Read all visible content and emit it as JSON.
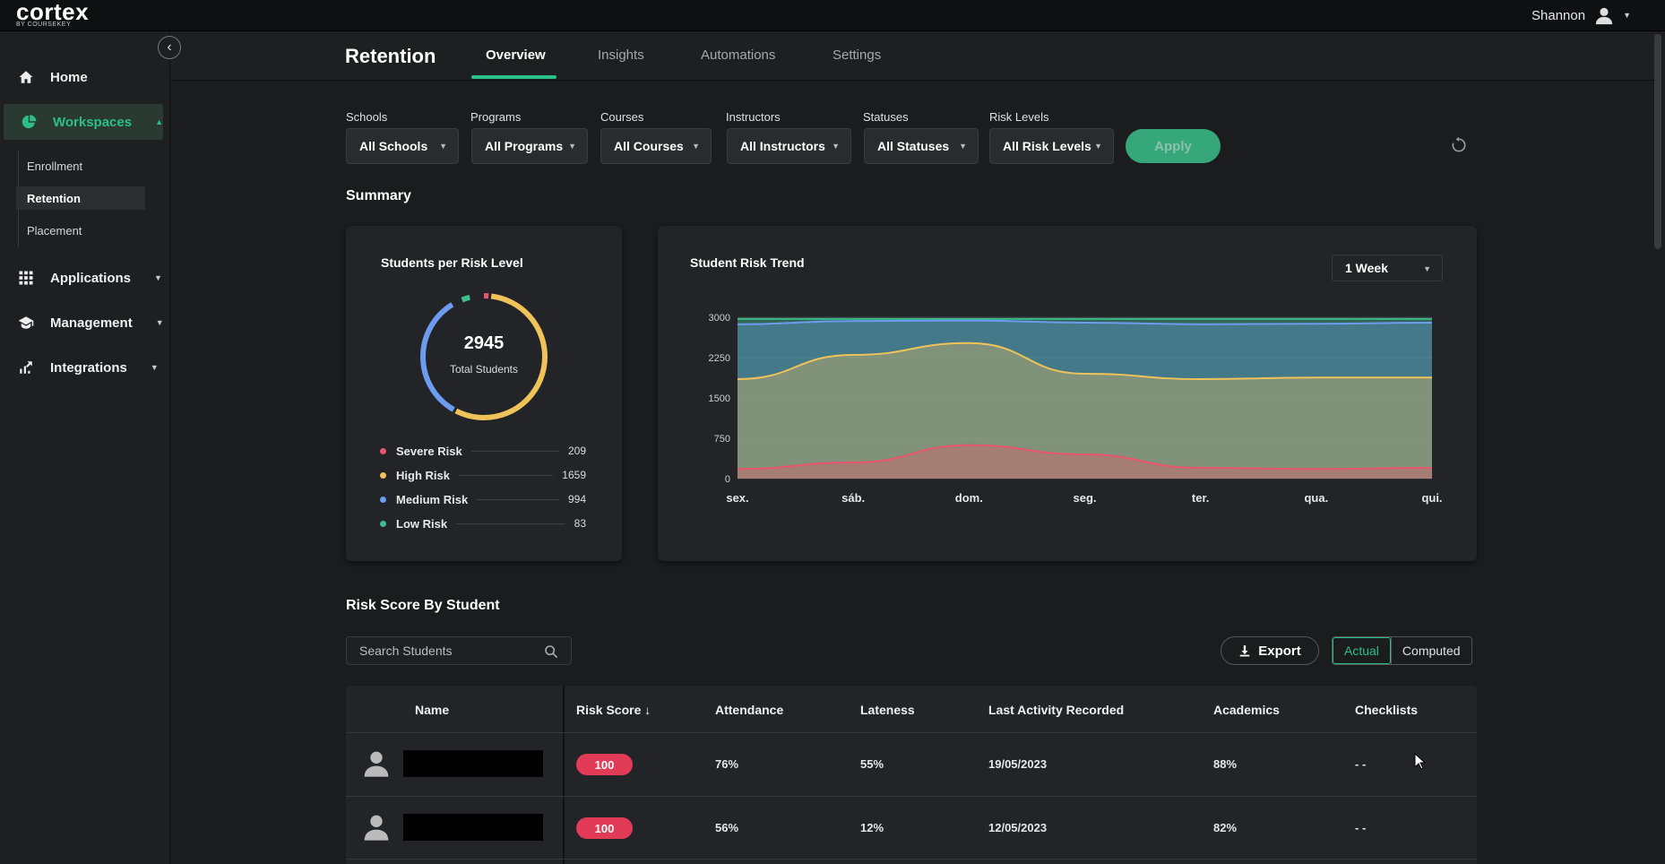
{
  "app": {
    "logo": "cortex",
    "logo_sub": "BY COURSEKEY",
    "user_name": "Shannon"
  },
  "sidebar": {
    "items": [
      {
        "label": "Home",
        "icon": "home-icon"
      },
      {
        "label": "Workspaces",
        "icon": "pie-icon",
        "expanded": true
      },
      {
        "label": "Applications",
        "icon": "grid-icon"
      },
      {
        "label": "Management",
        "icon": "graduation-cap-icon"
      },
      {
        "label": "Integrations",
        "icon": "integrations-icon"
      }
    ],
    "sub_items": [
      "Enrollment",
      "Retention",
      "Placement"
    ],
    "active_sub": "Retention"
  },
  "header": {
    "title": "Retention",
    "tabs": [
      "Overview",
      "Insights",
      "Automations",
      "Settings"
    ],
    "active_tab": "Overview"
  },
  "filters": {
    "labels": [
      "Schools",
      "Programs",
      "Courses",
      "Instructors",
      "Statuses",
      "Risk Levels"
    ],
    "values": [
      "All Schools",
      "All Programs",
      "All Courses",
      "All Instructors",
      "All Statuses",
      "All Risk Levels"
    ],
    "apply_label": "Apply"
  },
  "summary": {
    "title": "Summary",
    "donut": {
      "title": "Students per Risk Level",
      "total": "2945",
      "total_label": "Total Students",
      "legend": [
        {
          "label": "Severe Risk",
          "value": "209",
          "color": "#e8566c"
        },
        {
          "label": "High Risk",
          "value": "1659",
          "color": "#f0c35a"
        },
        {
          "label": "Medium Risk",
          "value": "994",
          "color": "#6c9cf0"
        },
        {
          "label": "Low Risk",
          "value": "83",
          "color": "#3dbd8b"
        }
      ]
    },
    "trend": {
      "title": "Student Risk Trend",
      "range_select": "1 Week"
    }
  },
  "chart_data": {
    "type": "area",
    "title": "Student Risk Trend",
    "categories": [
      "sex.",
      "sáb.",
      "dom.",
      "seg.",
      "ter.",
      "qua.",
      "qui."
    ],
    "y_ticks": [
      "0",
      "750",
      "1500",
      "2250",
      "3000"
    ],
    "ylim": [
      0,
      3000
    ],
    "stacked": true,
    "series": [
      {
        "color": "#e8566c",
        "values": [
          180,
          300,
          620,
          450,
          200,
          180,
          200
        ]
      },
      {
        "color": "#f0c35a",
        "values": [
          1850,
          2300,
          2520,
          1950,
          1850,
          1880,
          1880
        ]
      },
      {
        "color": "#6c9cf0",
        "values": [
          2870,
          2930,
          2940,
          2900,
          2870,
          2880,
          2900
        ]
      },
      {
        "color": "#3dbd8b",
        "values": [
          2970,
          2970,
          2970,
          2970,
          2970,
          2970,
          2970
        ]
      }
    ]
  },
  "students": {
    "title": "Risk Score By Student",
    "search_placeholder": "Search Students",
    "export_label": "Export",
    "toggle": [
      "Actual",
      "Computed"
    ],
    "columns": [
      "Name",
      "Risk Score",
      "Attendance",
      "Lateness",
      "Last Activity Recorded",
      "Academics",
      "Checklists"
    ],
    "sort_indicator": "↓",
    "rows": [
      {
        "risk": "100",
        "attendance": "76%",
        "lateness": "55%",
        "last_activity": "19/05/2023",
        "academics": "88%",
        "checklists": "- -"
      },
      {
        "risk": "100",
        "attendance": "56%",
        "lateness": "12%",
        "last_activity": "12/05/2023",
        "academics": "82%",
        "checklists": "- -"
      }
    ]
  }
}
